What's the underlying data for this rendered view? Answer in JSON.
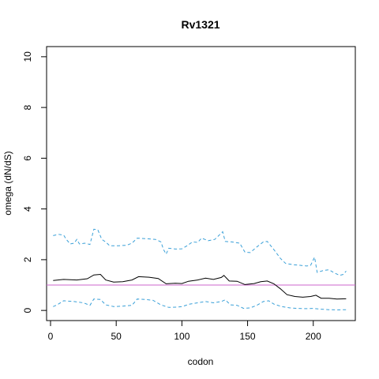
{
  "chart_data": {
    "type": "line",
    "title": "Rv1321",
    "xlabel": "codon",
    "ylabel": "omega (dN/dS)",
    "xlim": [
      -3,
      232
    ],
    "ylim": [
      -0.4,
      10.4
    ],
    "x_ticks": [
      0,
      50,
      100,
      150,
      200
    ],
    "y_ticks": [
      0,
      2,
      4,
      6,
      8,
      10
    ],
    "grid": false,
    "reference_line": {
      "y": 1,
      "color": "#cc66cc"
    },
    "series": [
      {
        "style": "solid",
        "color": "#000000",
        "points": [
          [
            2,
            1.18
          ],
          [
            10,
            1.22
          ],
          [
            20,
            1.2
          ],
          [
            28,
            1.25
          ],
          [
            33,
            1.4
          ],
          [
            38,
            1.42
          ],
          [
            42,
            1.2
          ],
          [
            48,
            1.12
          ],
          [
            55,
            1.13
          ],
          [
            62,
            1.2
          ],
          [
            67,
            1.33
          ],
          [
            75,
            1.31
          ],
          [
            82,
            1.26
          ],
          [
            88,
            1.05
          ],
          [
            95,
            1.07
          ],
          [
            100,
            1.06
          ],
          [
            105,
            1.15
          ],
          [
            112,
            1.2
          ],
          [
            118,
            1.27
          ],
          [
            124,
            1.22
          ],
          [
            130,
            1.3
          ],
          [
            132,
            1.38
          ],
          [
            136,
            1.16
          ],
          [
            142,
            1.15
          ],
          [
            148,
            1.02
          ],
          [
            155,
            1.06
          ],
          [
            160,
            1.13
          ],
          [
            165,
            1.16
          ],
          [
            170,
            1.05
          ],
          [
            175,
            0.85
          ],
          [
            180,
            0.62
          ],
          [
            186,
            0.55
          ],
          [
            192,
            0.52
          ],
          [
            198,
            0.55
          ],
          [
            202,
            0.6
          ],
          [
            206,
            0.48
          ],
          [
            212,
            0.48
          ],
          [
            218,
            0.45
          ],
          [
            225,
            0.46
          ]
        ]
      },
      {
        "style": "dashed",
        "color": "#3aa0d8",
        "points": [
          [
            2,
            2.95
          ],
          [
            6,
            3.0
          ],
          [
            10,
            2.97
          ],
          [
            12,
            2.8
          ],
          [
            15,
            2.62
          ],
          [
            18,
            2.65
          ],
          [
            20,
            2.8
          ],
          [
            22,
            2.62
          ],
          [
            26,
            2.65
          ],
          [
            30,
            2.6
          ],
          [
            33,
            3.2
          ],
          [
            36,
            3.18
          ],
          [
            39,
            2.8
          ],
          [
            42,
            2.7
          ],
          [
            45,
            2.55
          ],
          [
            52,
            2.55
          ],
          [
            58,
            2.57
          ],
          [
            62,
            2.65
          ],
          [
            66,
            2.85
          ],
          [
            72,
            2.83
          ],
          [
            80,
            2.8
          ],
          [
            84,
            2.7
          ],
          [
            86,
            2.4
          ],
          [
            88,
            2.22
          ],
          [
            90,
            2.45
          ],
          [
            95,
            2.42
          ],
          [
            100,
            2.43
          ],
          [
            104,
            2.55
          ],
          [
            108,
            2.7
          ],
          [
            112,
            2.68
          ],
          [
            115,
            2.85
          ],
          [
            120,
            2.75
          ],
          [
            125,
            2.8
          ],
          [
            129,
            3.0
          ],
          [
            131,
            3.1
          ],
          [
            133,
            2.72
          ],
          [
            138,
            2.7
          ],
          [
            144,
            2.65
          ],
          [
            148,
            2.3
          ],
          [
            152,
            2.28
          ],
          [
            157,
            2.5
          ],
          [
            162,
            2.7
          ],
          [
            165,
            2.72
          ],
          [
            170,
            2.4
          ],
          [
            175,
            2.05
          ],
          [
            179,
            1.85
          ],
          [
            185,
            1.8
          ],
          [
            190,
            1.78
          ],
          [
            195,
            1.75
          ],
          [
            198,
            1.78
          ],
          [
            201,
            2.1
          ],
          [
            203,
            1.5
          ],
          [
            208,
            1.58
          ],
          [
            212,
            1.6
          ],
          [
            216,
            1.48
          ],
          [
            220,
            1.38
          ],
          [
            223,
            1.42
          ],
          [
            225,
            1.55
          ]
        ]
      },
      {
        "style": "dashed",
        "color": "#3aa0d8",
        "points": [
          [
            2,
            0.15
          ],
          [
            5,
            0.22
          ],
          [
            10,
            0.38
          ],
          [
            18,
            0.35
          ],
          [
            25,
            0.3
          ],
          [
            30,
            0.2
          ],
          [
            33,
            0.45
          ],
          [
            38,
            0.43
          ],
          [
            42,
            0.22
          ],
          [
            48,
            0.15
          ],
          [
            55,
            0.17
          ],
          [
            62,
            0.2
          ],
          [
            66,
            0.45
          ],
          [
            72,
            0.43
          ],
          [
            78,
            0.4
          ],
          [
            84,
            0.22
          ],
          [
            90,
            0.12
          ],
          [
            96,
            0.13
          ],
          [
            100,
            0.15
          ],
          [
            106,
            0.25
          ],
          [
            112,
            0.3
          ],
          [
            118,
            0.35
          ],
          [
            124,
            0.3
          ],
          [
            130,
            0.35
          ],
          [
            133,
            0.42
          ],
          [
            137,
            0.22
          ],
          [
            142,
            0.2
          ],
          [
            147,
            0.08
          ],
          [
            152,
            0.1
          ],
          [
            157,
            0.2
          ],
          [
            162,
            0.35
          ],
          [
            166,
            0.38
          ],
          [
            170,
            0.25
          ],
          [
            176,
            0.15
          ],
          [
            182,
            0.1
          ],
          [
            188,
            0.08
          ],
          [
            195,
            0.07
          ],
          [
            200,
            0.08
          ],
          [
            205,
            0.05
          ],
          [
            212,
            0.03
          ],
          [
            218,
            0.02
          ],
          [
            225,
            0.03
          ]
        ]
      }
    ]
  }
}
